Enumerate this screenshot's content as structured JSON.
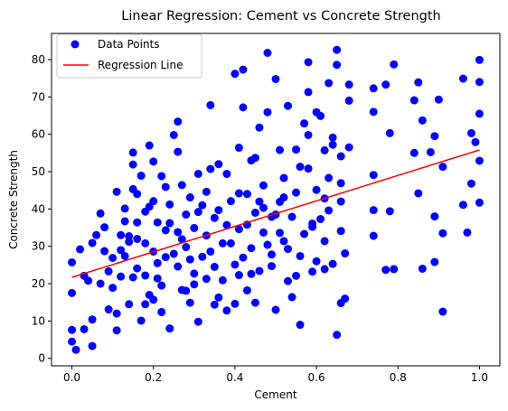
{
  "chart_data": {
    "type": "scatter",
    "title": "Linear Regression: Cement vs Concrete Strength",
    "xlabel": "Cement",
    "ylabel": "Concrete Strength",
    "xlim": [
      -0.05,
      1.05
    ],
    "ylim": [
      -2,
      87
    ],
    "xticks": [
      0.0,
      0.2,
      0.4,
      0.6,
      0.8,
      1.0
    ],
    "xtick_labels": [
      "0.0",
      "0.2",
      "0.4",
      "0.6",
      "0.8",
      "1.0"
    ],
    "yticks": [
      0,
      10,
      20,
      30,
      40,
      50,
      60,
      70,
      80
    ],
    "ytick_labels": [
      "0",
      "10",
      "20",
      "30",
      "40",
      "50",
      "60",
      "70",
      "80"
    ],
    "grid": false,
    "legend": {
      "position": "upper-left",
      "entries": [
        {
          "label": "Data Points",
          "marker": "circle",
          "color": "#0000ff"
        },
        {
          "label": "Regression Line",
          "marker": "line",
          "color": "#ff0000"
        }
      ]
    },
    "series": [
      {
        "name": "Data Points",
        "kind": "scatter",
        "color": "#0000ff",
        "points": [
          [
            0.0,
            25.7
          ],
          [
            0.0,
            17.5
          ],
          [
            0.0,
            7.6
          ],
          [
            0.0,
            4.5
          ],
          [
            0.01,
            2.3
          ],
          [
            0.02,
            29.2
          ],
          [
            0.03,
            7.8
          ],
          [
            0.03,
            22.1
          ],
          [
            0.05,
            10.4
          ],
          [
            0.05,
            30.9
          ],
          [
            0.05,
            3.3
          ],
          [
            0.06,
            33.0
          ],
          [
            0.07,
            20.0
          ],
          [
            0.08,
            28.7
          ],
          [
            0.08,
            35.1
          ],
          [
            0.09,
            13.1
          ],
          [
            0.1,
            26.9
          ],
          [
            0.1,
            18.9
          ],
          [
            0.11,
            7.5
          ],
          [
            0.11,
            44.6
          ],
          [
            0.12,
            33.0
          ],
          [
            0.12,
            21.9
          ],
          [
            0.13,
            40.1
          ],
          [
            0.13,
            27.4
          ],
          [
            0.14,
            14.5
          ],
          [
            0.14,
            32.7
          ],
          [
            0.15,
            55.1
          ],
          [
            0.15,
            51.9
          ],
          [
            0.16,
            44.0
          ],
          [
            0.16,
            36.4
          ],
          [
            0.16,
            24.1
          ],
          [
            0.17,
            10.1
          ],
          [
            0.17,
            48.9
          ],
          [
            0.18,
            30.8
          ],
          [
            0.18,
            39.3
          ],
          [
            0.19,
            17.0
          ],
          [
            0.19,
            57.0
          ],
          [
            0.2,
            52.7
          ],
          [
            0.2,
            42.1
          ],
          [
            0.2,
            28.6
          ],
          [
            0.21,
            21.4
          ],
          [
            0.21,
            36.4
          ],
          [
            0.22,
            12.4
          ],
          [
            0.22,
            48.8
          ],
          [
            0.23,
            34.3
          ],
          [
            0.23,
            27.1
          ],
          [
            0.24,
            41.2
          ],
          [
            0.24,
            8.0
          ],
          [
            0.25,
            59.8
          ],
          [
            0.26,
            63.4
          ],
          [
            0.26,
            24.6
          ],
          [
            0.26,
            55.3
          ],
          [
            0.27,
            18.3
          ],
          [
            0.27,
            46.4
          ],
          [
            0.28,
            29.8
          ],
          [
            0.28,
            38.5
          ],
          [
            0.29,
            43.1
          ],
          [
            0.29,
            14.9
          ],
          [
            0.3,
            22.7
          ],
          [
            0.3,
            34.9
          ],
          [
            0.31,
            49.4
          ],
          [
            0.31,
            9.8
          ],
          [
            0.32,
            27.2
          ],
          [
            0.33,
            32.9
          ],
          [
            0.33,
            44.6
          ],
          [
            0.34,
            67.8
          ],
          [
            0.34,
            50.7
          ],
          [
            0.35,
            24.5
          ],
          [
            0.35,
            14.4
          ],
          [
            0.36,
            39.7
          ],
          [
            0.36,
            52.0
          ],
          [
            0.37,
            30.8
          ],
          [
            0.38,
            12.8
          ],
          [
            0.38,
            49.4
          ],
          [
            0.39,
            42.1
          ],
          [
            0.4,
            76.2
          ],
          [
            0.4,
            25.1
          ],
          [
            0.41,
            56.4
          ],
          [
            0.41,
            34.6
          ],
          [
            0.42,
            77.3
          ],
          [
            0.42,
            67.2
          ],
          [
            0.43,
            18.2
          ],
          [
            0.43,
            44.0
          ],
          [
            0.44,
            29.5
          ],
          [
            0.44,
            53.0
          ],
          [
            0.45,
            14.9
          ],
          [
            0.45,
            39.0
          ],
          [
            0.46,
            61.8
          ],
          [
            0.46,
            23.4
          ],
          [
            0.47,
            46.3
          ],
          [
            0.47,
            33.7
          ],
          [
            0.48,
            81.8
          ],
          [
            0.48,
            65.9
          ],
          [
            0.49,
            37.9
          ],
          [
            0.49,
            27.8
          ],
          [
            0.5,
            74.8
          ],
          [
            0.5,
            13.0
          ],
          [
            0.51,
            55.8
          ],
          [
            0.51,
            41.9
          ],
          [
            0.52,
            48.3
          ],
          [
            0.52,
            31.4
          ],
          [
            0.53,
            67.6
          ],
          [
            0.53,
            20.7
          ],
          [
            0.54,
            37.9
          ],
          [
            0.55,
            55.9
          ],
          [
            0.55,
            44.4
          ],
          [
            0.56,
            27.4
          ],
          [
            0.56,
            9.0
          ],
          [
            0.57,
            62.9
          ],
          [
            0.58,
            79.3
          ],
          [
            0.58,
            71.3
          ],
          [
            0.58,
            50.8
          ],
          [
            0.59,
            36.1
          ],
          [
            0.59,
            23.2
          ],
          [
            0.6,
            65.9
          ],
          [
            0.6,
            45.1
          ],
          [
            0.61,
            64.9
          ],
          [
            0.62,
            55.7
          ],
          [
            0.62,
            31.4
          ],
          [
            0.63,
            73.7
          ],
          [
            0.63,
            39.6
          ],
          [
            0.64,
            25.3
          ],
          [
            0.64,
            59.1
          ],
          [
            0.65,
            82.6
          ],
          [
            0.65,
            78.6
          ],
          [
            0.65,
            6.3
          ],
          [
            0.66,
            14.8
          ],
          [
            0.66,
            46.9
          ],
          [
            0.66,
            54.1
          ],
          [
            0.67,
            28.1
          ],
          [
            0.68,
            73.3
          ],
          [
            0.68,
            69.0
          ],
          [
            0.68,
            56.5
          ],
          [
            0.74,
            72.3
          ],
          [
            0.74,
            66.0
          ],
          [
            0.74,
            49.1
          ],
          [
            0.74,
            39.7
          ],
          [
            0.74,
            32.8
          ],
          [
            0.77,
            23.7
          ],
          [
            0.77,
            73.3
          ],
          [
            0.78,
            60.3
          ],
          [
            0.78,
            39.4
          ],
          [
            0.79,
            23.9
          ],
          [
            0.79,
            78.7
          ],
          [
            0.84,
            69.1
          ],
          [
            0.84,
            55.0
          ],
          [
            0.85,
            73.9
          ],
          [
            0.85,
            44.2
          ],
          [
            0.86,
            63.7
          ],
          [
            0.86,
            24.0
          ],
          [
            0.88,
            55.2
          ],
          [
            0.89,
            59.5
          ],
          [
            0.89,
            38.0
          ],
          [
            0.89,
            25.8
          ],
          [
            0.9,
            69.3
          ],
          [
            0.91,
            12.5
          ],
          [
            0.91,
            51.3
          ],
          [
            0.91,
            33.5
          ],
          [
            0.96,
            41.1
          ],
          [
            0.96,
            74.9
          ],
          [
            0.97,
            33.7
          ],
          [
            0.98,
            60.3
          ],
          [
            0.98,
            46.8
          ],
          [
            0.99,
            57.9
          ],
          [
            1.0,
            79.9
          ],
          [
            1.0,
            74.0
          ],
          [
            1.0,
            65.5
          ],
          [
            1.0,
            41.7
          ],
          [
            1.0,
            52.9
          ],
          [
            0.12,
            29.0
          ],
          [
            0.14,
            31.2
          ],
          [
            0.15,
            21.7
          ],
          [
            0.18,
            22.2
          ],
          [
            0.22,
            19.5
          ],
          [
            0.26,
            33.8
          ],
          [
            0.29,
            26.5
          ],
          [
            0.33,
            21.3
          ],
          [
            0.36,
            16.3
          ],
          [
            0.38,
            35.7
          ],
          [
            0.41,
            22.3
          ],
          [
            0.44,
            22.6
          ],
          [
            0.47,
            40.3
          ],
          [
            0.5,
            38.5
          ],
          [
            0.53,
            29.3
          ],
          [
            0.57,
            33.3
          ],
          [
            0.6,
            26.0
          ],
          [
            0.62,
            42.8
          ],
          [
            0.66,
            34.1
          ],
          [
            0.04,
            20.8
          ],
          [
            0.07,
            38.8
          ],
          [
            0.09,
            23.3
          ],
          [
            0.11,
            12.0
          ],
          [
            0.15,
            45.3
          ],
          [
            0.18,
            14.5
          ],
          [
            0.21,
            25.5
          ],
          [
            0.24,
            36.2
          ],
          [
            0.27,
            31.9
          ],
          [
            0.31,
            39.2
          ],
          [
            0.34,
            28.6
          ],
          [
            0.37,
            20.9
          ],
          [
            0.41,
            44.2
          ],
          [
            0.45,
            53.7
          ],
          [
            0.48,
            30.4
          ],
          [
            0.52,
            43.1
          ],
          [
            0.55,
            22.1
          ],
          [
            0.59,
            35.2
          ],
          [
            0.63,
            48.3
          ],
          [
            0.67,
            16.0
          ],
          [
            0.13,
            36.7
          ],
          [
            0.19,
            40.6
          ],
          [
            0.23,
            45.9
          ],
          [
            0.28,
            18.1
          ],
          [
            0.32,
            41.0
          ],
          [
            0.39,
            30.8
          ],
          [
            0.43,
            35.8
          ],
          [
            0.46,
            42.0
          ],
          [
            0.51,
            33.6
          ],
          [
            0.56,
            51.3
          ],
          [
            0.61,
            37.3
          ],
          [
            0.64,
            57.2
          ],
          [
            0.16,
            32.0
          ],
          [
            0.2,
            15.7
          ],
          [
            0.25,
            28.0
          ],
          [
            0.3,
            19.8
          ],
          [
            0.35,
            37.6
          ],
          [
            0.4,
            14.6
          ],
          [
            0.42,
            27.0
          ],
          [
            0.49,
            24.7
          ],
          [
            0.54,
            16.4
          ],
          [
            0.58,
            59.8
          ],
          [
            0.62,
            23.9
          ],
          [
            0.66,
            42.0
          ]
        ]
      },
      {
        "name": "Regression Line",
        "kind": "line",
        "color": "#ff0000",
        "x": [
          0.0,
          1.0
        ],
        "y": [
          21.7,
          55.8
        ]
      }
    ]
  }
}
